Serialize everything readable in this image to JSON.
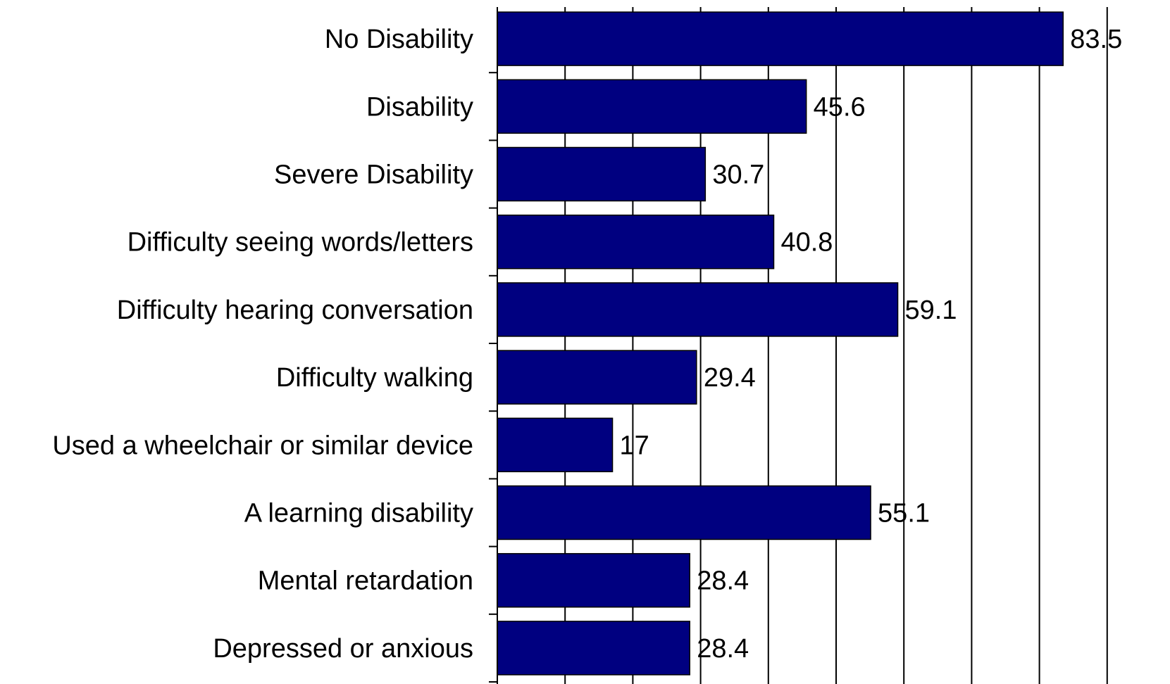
{
  "chart_data": {
    "type": "bar",
    "orientation": "horizontal",
    "categories": [
      "No Disability",
      "Disability",
      "Severe Disability",
      "Difficulty seeing words/letters",
      "Difficulty hearing conversation",
      "Difficulty walking",
      "Used a wheelchair or similar device",
      "A learning disability",
      "Mental retardation",
      "Depressed or anxious"
    ],
    "values": [
      83.5,
      45.6,
      30.7,
      40.8,
      59.1,
      29.4,
      17,
      55.1,
      28.4,
      28.4
    ],
    "value_labels": [
      "83.5",
      "45.6",
      "30.7",
      "40.8",
      "59.1",
      "29.4",
      "17",
      "55.1",
      "28.4",
      "28.4"
    ],
    "xlim": [
      0,
      100
    ],
    "grid": "vertical",
    "bar_color": "#000080",
    "title": "",
    "xlabel": "",
    "ylabel": ""
  }
}
